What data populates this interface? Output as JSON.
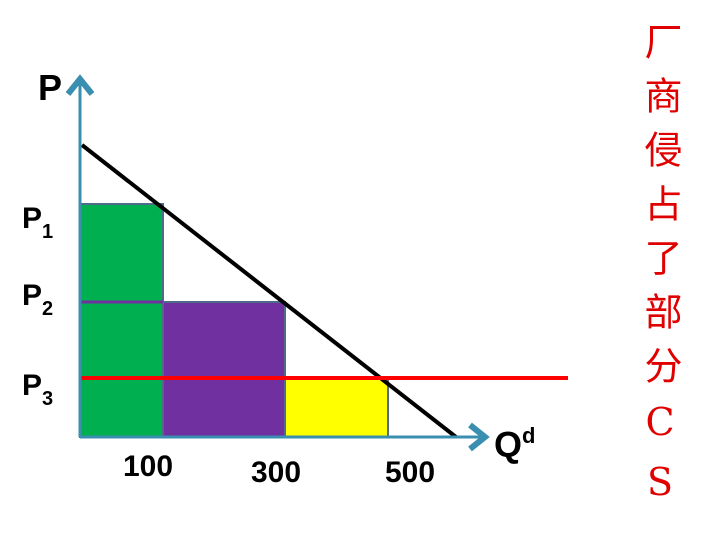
{
  "axes": {
    "y_label": "P",
    "x_label": {
      "main": "Q",
      "sup": "d"
    }
  },
  "x_tick_labels": [
    "100",
    "300",
    "500"
  ],
  "y_tick_labels": [
    {
      "main": "P",
      "sub": "1"
    },
    {
      "main": "P",
      "sub": "2"
    },
    {
      "main": "P",
      "sub": "3"
    }
  ],
  "side_text": "厂商侵占了部分CS"
}
